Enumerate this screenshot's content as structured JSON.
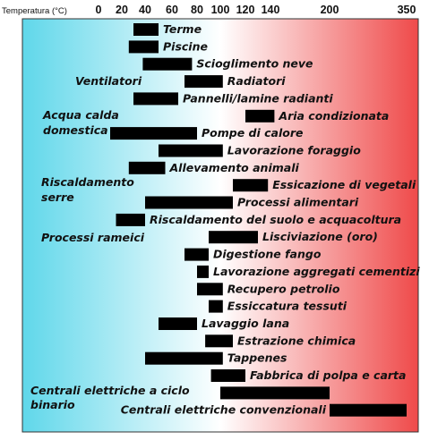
{
  "chart_data": {
    "type": "bar",
    "orientation": "horizontal-range",
    "xlabel": "Temperatura (°C)",
    "x_ticks": [
      "0",
      "20",
      "40",
      "60",
      "80",
      "100",
      "120",
      "140",
      "200",
      "350"
    ],
    "x_unit": "°C",
    "background_gradient": [
      "#5fd7ea",
      "#ffffff",
      "#ef4a4a"
    ],
    "bar_color": "#000000",
    "grid": false,
    "legend": "none",
    "bars": [
      {
        "label": "Terme",
        "start": 30,
        "end": 50
      },
      {
        "label": "Piscine",
        "start": 26,
        "end": 50
      },
      {
        "label": "Scioglimento neve",
        "start": 38,
        "end": 76
      },
      {
        "label": "Radiatori",
        "start": 70,
        "end": 102
      },
      {
        "label": "Pannelli/lamine radianti",
        "start": 30,
        "end": 65
      },
      {
        "label": "Aria condizionata",
        "start": 120,
        "end": 144
      },
      {
        "label": "Pompe di calore",
        "start": 10,
        "end": 80
      },
      {
        "label": "Lavorazione foraggio",
        "start": 50,
        "end": 102
      },
      {
        "label": "Allevamento animali",
        "start": 26,
        "end": 55
      },
      {
        "label": "Essicazione di vegetali",
        "start": 110,
        "end": 138
      },
      {
        "label": "Processi alimentari",
        "start": 40,
        "end": 110
      },
      {
        "label": "Riscaldamento del suolo e acquacoltura",
        "start": 15,
        "end": 40
      },
      {
        "label": "Lisciviazione (oro)",
        "start": 90,
        "end": 130
      },
      {
        "label": "Digestione fango",
        "start": 70,
        "end": 90
      },
      {
        "label": "Lavorazione aggregati cementizi",
        "start": 80,
        "end": 90
      },
      {
        "label": "Recupero petrolio",
        "start": 80,
        "end": 102
      },
      {
        "label": "Essiccatura tessuti",
        "start": 90,
        "end": 102
      },
      {
        "label": "Lavaggio lana",
        "start": 50,
        "end": 80
      },
      {
        "label": "Estrazione chimica",
        "start": 87,
        "end": 110
      },
      {
        "label": "Tappenes",
        "start": 40,
        "end": 102
      },
      {
        "label": "Fabbrica di polpa e carta",
        "start": 92,
        "end": 120
      },
      {
        "label": "Centrali elettriche a ciclo binario",
        "start": 100,
        "end": 200
      },
      {
        "label": "Centrali elettriche convenzionali",
        "start": 200,
        "end": 350
      }
    ],
    "left_labels": [
      "Ventilatori",
      "Acqua calda domestica",
      "Riscaldamento serre",
      "Processi rameici",
      "Centrali elettriche a ciclo binario"
    ]
  }
}
